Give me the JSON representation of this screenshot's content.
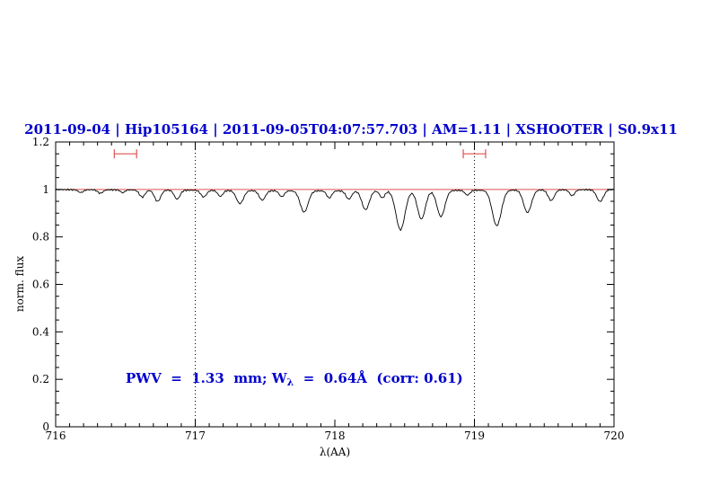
{
  "title": {
    "text": "2011-09-04 | Hip105164 | 2011-09-05T04:07:57.703 | AM=1.11 | XSHOOTER | S0.9x11",
    "color": "#0000cd"
  },
  "annotation": {
    "prefix": "PWV  =  1.33  mm; W",
    "sub": "λ",
    "suffix": "  =  0.64Å  (corr: 0.61)",
    "color": "#0000cd"
  },
  "chart_data": {
    "type": "line",
    "title": "2011-09-04 | Hip105164 | 2011-09-05T04:07:57.703 | AM=1.11 | XSHOOTER | S0.9x11",
    "xlabel": "λ(AA)",
    "ylabel": "norm. flux",
    "xlim": [
      716,
      720
    ],
    "ylim": [
      0,
      1.2
    ],
    "x_ticks": [
      716,
      717,
      718,
      719,
      720
    ],
    "x_tick_labels": [
      "716",
      "717",
      "718",
      "719",
      "720"
    ],
    "y_ticks": [
      0,
      0.2,
      0.4,
      0.6,
      0.8,
      1,
      1.2
    ],
    "y_tick_labels": [
      "0",
      "0.2",
      "0.4",
      "0.6",
      "0.8",
      "1",
      "1.2"
    ],
    "grid": false,
    "legend": "none",
    "line_color": "#000000",
    "continuum_level": 1.0,
    "continuum_color": "#e05050",
    "guide_line_color": "#000000",
    "dotted_guides_x": [
      717,
      719
    ],
    "range_markers": [
      {
        "x_min": 716.42,
        "x_max": 716.58,
        "y": 1.15,
        "color": "#e05050"
      },
      {
        "x_min": 718.92,
        "x_max": 719.08,
        "y": 1.15,
        "color": "#e05050"
      }
    ],
    "absorption_features": [
      {
        "center": 716.18,
        "depth": 0.012,
        "sigma": 0.018
      },
      {
        "center": 716.32,
        "depth": 0.015,
        "sigma": 0.018
      },
      {
        "center": 716.48,
        "depth": 0.012,
        "sigma": 0.015
      },
      {
        "center": 716.62,
        "depth": 0.03,
        "sigma": 0.02
      },
      {
        "center": 716.73,
        "depth": 0.048,
        "sigma": 0.022
      },
      {
        "center": 716.87,
        "depth": 0.038,
        "sigma": 0.02
      },
      {
        "center": 717.06,
        "depth": 0.028,
        "sigma": 0.02
      },
      {
        "center": 717.18,
        "depth": 0.025,
        "sigma": 0.018
      },
      {
        "center": 717.32,
        "depth": 0.055,
        "sigma": 0.025
      },
      {
        "center": 717.48,
        "depth": 0.04,
        "sigma": 0.022
      },
      {
        "center": 717.62,
        "depth": 0.025,
        "sigma": 0.018
      },
      {
        "center": 717.78,
        "depth": 0.09,
        "sigma": 0.028
      },
      {
        "center": 717.96,
        "depth": 0.03,
        "sigma": 0.018
      },
      {
        "center": 718.1,
        "depth": 0.035,
        "sigma": 0.02
      },
      {
        "center": 718.22,
        "depth": 0.08,
        "sigma": 0.026
      },
      {
        "center": 718.34,
        "depth": 0.03,
        "sigma": 0.018
      },
      {
        "center": 718.47,
        "depth": 0.165,
        "sigma": 0.032
      },
      {
        "center": 718.62,
        "depth": 0.12,
        "sigma": 0.028
      },
      {
        "center": 718.76,
        "depth": 0.11,
        "sigma": 0.028
      },
      {
        "center": 718.95,
        "depth": 0.02,
        "sigma": 0.018
      },
      {
        "center": 719.16,
        "depth": 0.15,
        "sigma": 0.032
      },
      {
        "center": 719.38,
        "depth": 0.095,
        "sigma": 0.028
      },
      {
        "center": 719.55,
        "depth": 0.045,
        "sigma": 0.022
      },
      {
        "center": 719.7,
        "depth": 0.025,
        "sigma": 0.018
      },
      {
        "center": 719.9,
        "depth": 0.05,
        "sigma": 0.024
      },
      {
        "center": 718.0,
        "depth": 0.006,
        "sigma": 1.0
      }
    ],
    "noise_amplitude": 0.004,
    "sample_step": 0.008
  }
}
